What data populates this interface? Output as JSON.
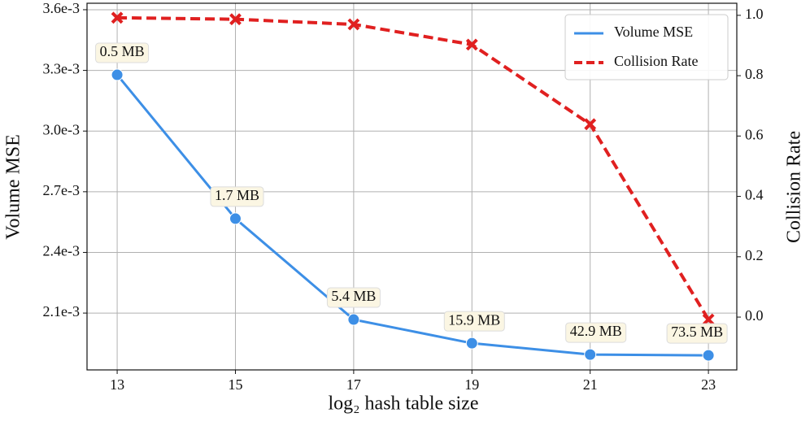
{
  "chart_data": {
    "type": "line",
    "xlabel": "log₂ hash table size",
    "ylabel": "Volume MSE",
    "y2label": "Collision Rate",
    "x": [
      13,
      15,
      17,
      19,
      21,
      23
    ],
    "xlim": [
      12.49,
      23.48
    ],
    "xticks": [
      13,
      15,
      17,
      19,
      21,
      23
    ],
    "ylim": [
      0.001819,
      0.003632
    ],
    "yticks": [
      {
        "value": 0.0021,
        "label": "2.1e-3"
      },
      {
        "value": 0.0024,
        "label": "2.4e-3"
      },
      {
        "value": 0.0027,
        "label": "2.7e-3"
      },
      {
        "value": 0.003,
        "label": "3.0e-3"
      },
      {
        "value": 0.0033,
        "label": "3.3e-3"
      },
      {
        "value": 0.0036,
        "label": "3.6e-3"
      }
    ],
    "y2lim": [
      -0.175,
      1.04
    ],
    "y2ticks": [
      {
        "value": 0,
        "label": "0.0"
      },
      0.2,
      0.4,
      0.6,
      0.8,
      {
        "value": 1,
        "label": "1.0"
      }
    ],
    "grid": true,
    "legend": "upper right",
    "series": [
      {
        "name": "Volume MSE",
        "color": "#3d8fe6",
        "marker": "circle",
        "dashed": false,
        "values": [
          0.003278,
          0.002567,
          0.002068,
          0.001951,
          0.001895,
          0.001891
        ]
      },
      {
        "name": "Collision Rate",
        "color": "#e02020",
        "marker": "x",
        "dashed": true,
        "axis": "y2",
        "values": [
          0.992,
          0.987,
          0.97,
          0.903,
          0.639,
          -0.008
        ]
      }
    ],
    "annotations": [
      "0.5 MB",
      "1.7 MB",
      "5.4 MB",
      "15.9 MB",
      "42.9 MB",
      "73.5 MB"
    ]
  }
}
